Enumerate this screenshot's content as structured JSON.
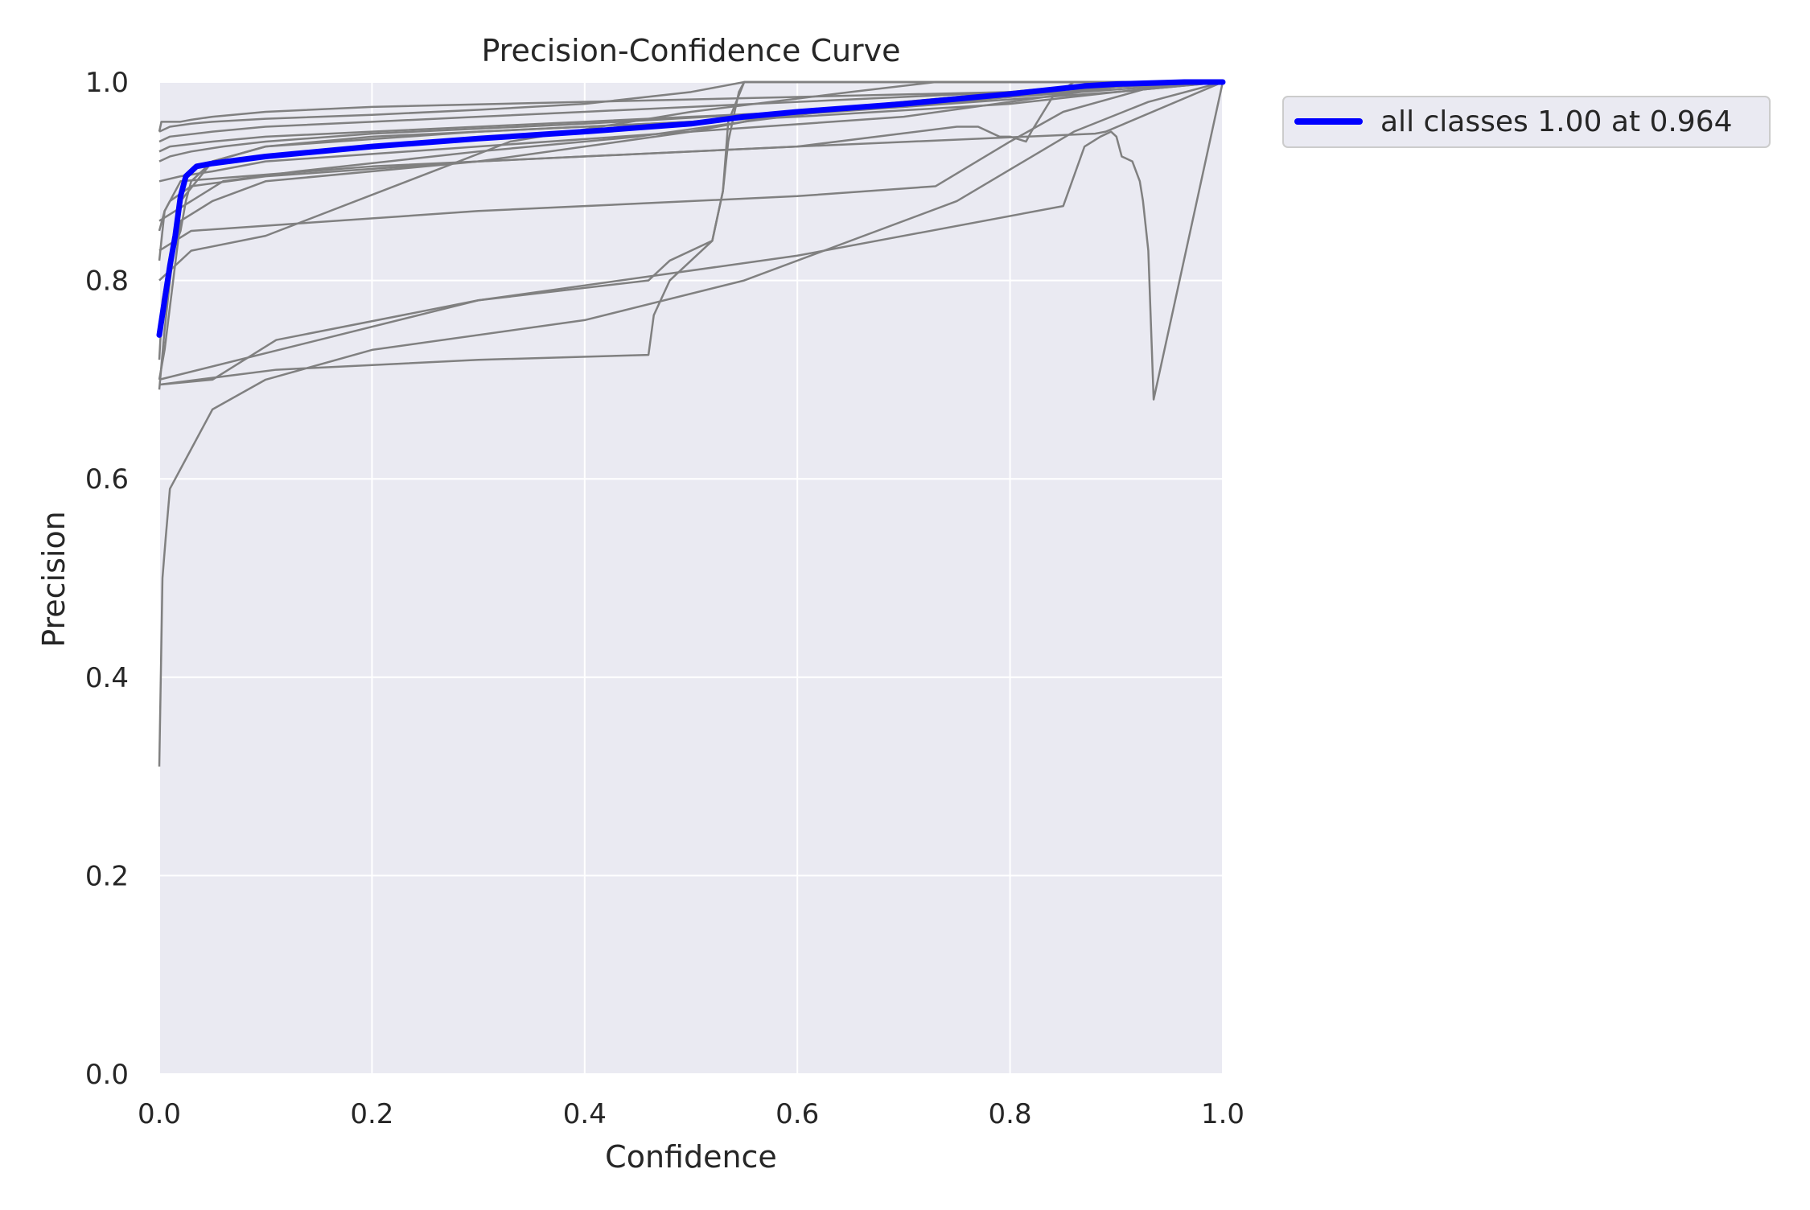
{
  "chart_data": {
    "type": "line",
    "title": "Precision-Confidence Curve",
    "xlabel": "Confidence",
    "ylabel": "Precision",
    "xlim": [
      0,
      1
    ],
    "ylim": [
      0,
      1
    ],
    "xticks": [
      "0.0",
      "0.2",
      "0.4",
      "0.6",
      "0.8",
      "1.0"
    ],
    "yticks": [
      "0.0",
      "0.2",
      "0.4",
      "0.6",
      "0.8",
      "1.0"
    ],
    "grid": true,
    "legend_position": "outside-top-right",
    "colors": {
      "plot_background": "#eaeaf2",
      "grid": "#ffffff",
      "class_curves": "#808080",
      "all_classes": "#0000ff",
      "legend_background": "#eaeaf2",
      "legend_border": "#cccccc"
    },
    "class_series": [
      {
        "x": [
          0.0,
          0.003,
          0.006,
          0.01,
          0.02,
          0.035,
          0.05,
          0.1,
          0.2,
          0.4,
          0.55,
          0.75,
          0.86,
          0.93,
          1.0
        ],
        "y": [
          0.31,
          0.5,
          0.54,
          0.59,
          0.61,
          0.64,
          0.67,
          0.7,
          0.73,
          0.76,
          0.8,
          0.88,
          0.95,
          0.98,
          1.0
        ]
      },
      {
        "x": [
          0.0,
          0.002,
          0.004,
          0.01,
          0.015,
          0.02,
          0.03,
          0.05,
          0.1,
          0.2,
          0.4,
          0.6,
          0.8,
          0.9,
          1.0
        ],
        "y": [
          0.95,
          0.96,
          0.96,
          0.96,
          0.96,
          0.96,
          0.962,
          0.965,
          0.97,
          0.975,
          0.98,
          0.985,
          0.99,
          0.995,
          1.0
        ]
      },
      {
        "x": [
          0.0,
          0.01,
          0.03,
          0.05,
          0.1,
          0.2,
          0.3,
          0.4,
          0.5,
          0.55,
          0.56,
          0.8,
          1.0
        ],
        "y": [
          0.95,
          0.955,
          0.958,
          0.96,
          0.963,
          0.967,
          0.972,
          0.978,
          0.99,
          1.0,
          1.0,
          1.0,
          1.0
        ]
      },
      {
        "x": [
          0.0,
          0.01,
          0.05,
          0.1,
          0.2,
          0.3,
          0.4,
          0.5,
          0.6,
          0.7,
          0.8,
          0.9,
          1.0
        ],
        "y": [
          0.94,
          0.945,
          0.95,
          0.955,
          0.96,
          0.965,
          0.97,
          0.975,
          0.98,
          0.985,
          0.99,
          0.995,
          1.0
        ]
      },
      {
        "x": [
          0.0,
          0.01,
          0.05,
          0.1,
          0.2,
          0.3,
          0.4,
          0.5,
          0.6,
          0.7,
          0.8,
          0.9,
          1.0
        ],
        "y": [
          0.93,
          0.935,
          0.94,
          0.945,
          0.95,
          0.955,
          0.96,
          0.965,
          0.97,
          0.975,
          0.985,
          0.995,
          1.0
        ]
      },
      {
        "x": [
          0.0,
          0.01,
          0.03,
          0.06,
          0.1,
          0.2,
          0.4,
          0.6,
          0.8,
          1.0
        ],
        "y": [
          0.92,
          0.925,
          0.93,
          0.935,
          0.94,
          0.948,
          0.958,
          0.97,
          0.985,
          1.0
        ]
      },
      {
        "x": [
          0.0,
          0.005,
          0.01,
          0.02,
          0.05,
          0.1,
          0.2,
          0.4,
          0.6,
          0.8,
          0.9,
          1.0
        ],
        "y": [
          0.69,
          0.75,
          0.8,
          0.88,
          0.92,
          0.935,
          0.945,
          0.955,
          0.965,
          0.978,
          0.99,
          1.0
        ]
      },
      {
        "x": [
          0.0,
          0.003,
          0.01,
          0.02,
          0.025,
          0.03,
          0.05,
          0.1,
          0.3,
          0.5,
          0.7,
          0.9,
          1.0
        ],
        "y": [
          0.72,
          0.78,
          0.82,
          0.85,
          0.88,
          0.9,
          0.92,
          0.935,
          0.95,
          0.96,
          0.975,
          0.99,
          1.0
        ]
      },
      {
        "x": [
          0.0,
          0.02,
          0.05,
          0.1,
          0.3,
          0.5,
          0.7,
          0.8,
          0.9,
          1.0
        ],
        "y": [
          0.9,
          0.905,
          0.91,
          0.92,
          0.935,
          0.95,
          0.965,
          0.98,
          0.995,
          1.0
        ]
      },
      {
        "x": [
          0.0,
          0.005,
          0.02,
          0.05,
          0.1,
          0.3,
          0.5,
          0.6,
          0.7,
          0.8,
          0.9,
          1.0
        ],
        "y": [
          0.7,
          0.73,
          0.86,
          0.88,
          0.9,
          0.92,
          0.95,
          0.97,
          0.98,
          0.99,
          0.995,
          1.0
        ]
      },
      {
        "x": [
          0.0,
          0.03,
          0.1,
          0.33,
          0.5,
          0.65,
          0.73,
          0.77,
          0.9,
          1.0
        ],
        "y": [
          0.8,
          0.83,
          0.845,
          0.94,
          0.97,
          0.99,
          1.0,
          1.0,
          1.0,
          1.0
        ]
      },
      {
        "x": [
          0.0,
          0.06,
          0.13,
          0.3,
          0.45,
          0.55,
          0.7,
          0.85,
          1.0
        ],
        "y": [
          0.86,
          0.9,
          0.91,
          0.93,
          0.945,
          0.96,
          0.98,
          0.995,
          1.0
        ]
      },
      {
        "x": [
          0.0,
          0.03,
          0.3,
          0.6,
          0.73,
          0.8,
          0.85,
          0.95,
          1.0
        ],
        "y": [
          0.83,
          0.85,
          0.87,
          0.885,
          0.895,
          0.94,
          0.97,
          1.0,
          1.0
        ]
      },
      {
        "x": [
          0.0,
          0.05,
          0.11,
          0.3,
          0.46,
          0.47,
          0.48,
          0.52,
          0.53,
          0.535,
          0.55,
          0.6,
          0.7,
          0.8,
          1.0
        ],
        "y": [
          0.695,
          0.7,
          0.74,
          0.78,
          0.8,
          0.81,
          0.82,
          0.84,
          0.89,
          0.96,
          1.0,
          1.0,
          1.0,
          1.0,
          1.0
        ]
      },
      {
        "x": [
          0.0,
          0.11,
          0.3,
          0.46,
          0.465,
          0.48,
          0.52,
          0.53,
          0.535,
          0.545,
          0.55,
          0.7,
          1.0
        ],
        "y": [
          0.695,
          0.71,
          0.72,
          0.725,
          0.765,
          0.8,
          0.84,
          0.89,
          0.94,
          0.99,
          1.0,
          1.0,
          1.0
        ]
      },
      {
        "x": [
          0.0,
          0.3,
          0.6,
          0.85,
          0.87,
          0.885,
          0.895,
          0.9,
          0.905,
          0.915,
          0.922,
          0.925,
          0.93,
          0.935,
          1.0
        ],
        "y": [
          0.7,
          0.78,
          0.825,
          0.875,
          0.935,
          0.945,
          0.95,
          0.945,
          0.925,
          0.92,
          0.9,
          0.88,
          0.83,
          0.68,
          1.0
        ]
      },
      {
        "x": [
          0.0,
          0.005,
          0.02,
          0.2,
          0.6,
          0.75,
          0.77,
          0.79,
          0.8,
          0.815,
          0.82,
          0.84,
          0.86,
          0.9,
          1.0
        ],
        "y": [
          0.82,
          0.87,
          0.9,
          0.915,
          0.935,
          0.955,
          0.955,
          0.945,
          0.945,
          0.94,
          0.95,
          0.985,
          1.0,
          1.0,
          1.0
        ]
      },
      {
        "x": [
          0.0,
          0.005,
          0.01,
          0.03,
          0.1,
          0.3,
          0.6,
          0.88,
          0.89,
          1.0
        ],
        "y": [
          0.85,
          0.87,
          0.88,
          0.895,
          0.905,
          0.92,
          0.935,
          0.948,
          0.95,
          1.0
        ]
      }
    ],
    "series": [
      {
        "name": "all classes 1.00 at 0.964",
        "x": [
          0.0,
          0.005,
          0.01,
          0.015,
          0.02,
          0.025,
          0.035,
          0.05,
          0.1,
          0.2,
          0.3,
          0.4,
          0.5,
          0.55,
          0.6,
          0.7,
          0.8,
          0.87,
          0.9,
          0.964,
          1.0
        ],
        "y": [
          0.745,
          0.78,
          0.815,
          0.845,
          0.885,
          0.905,
          0.915,
          0.918,
          0.925,
          0.935,
          0.943,
          0.95,
          0.958,
          0.965,
          0.97,
          0.978,
          0.988,
          0.996,
          0.998,
          1.0,
          1.0
        ]
      }
    ]
  }
}
